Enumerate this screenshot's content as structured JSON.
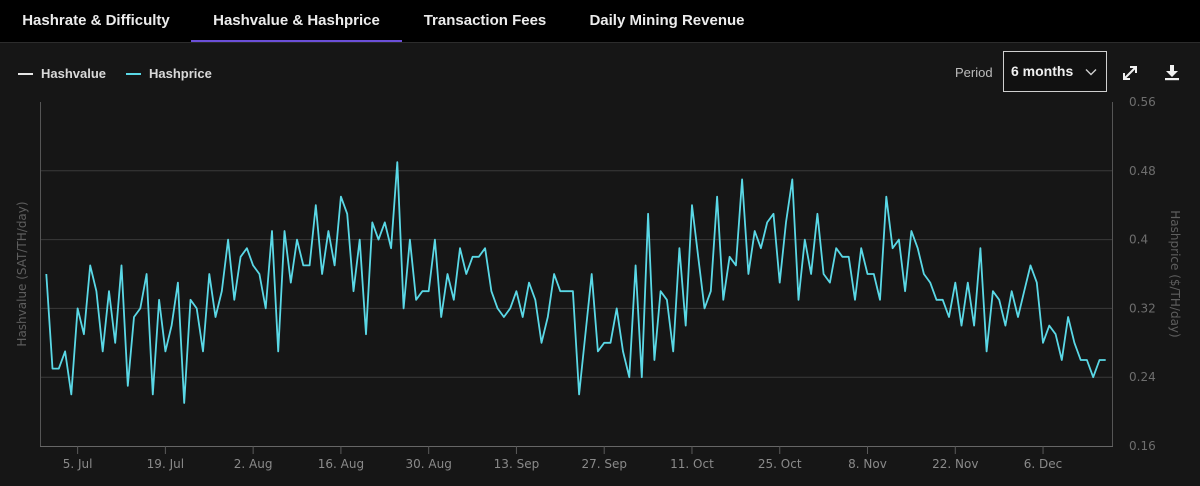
{
  "tabs": [
    {
      "label": "Hashrate & Difficulty",
      "active": false
    },
    {
      "label": "Hashvalue & Hashprice",
      "active": true
    },
    {
      "label": "Transaction Fees",
      "active": false
    },
    {
      "label": "Daily Mining Revenue",
      "active": false
    }
  ],
  "legend": [
    {
      "label": "Hashvalue",
      "color": "#e6e6e6"
    },
    {
      "label": "Hashprice",
      "color": "#5ad8e6"
    }
  ],
  "period": {
    "label": "Period",
    "value": "6 months"
  },
  "icons": {
    "expand": "expand-icon",
    "download": "download-icon",
    "chevron": "chevron-down-icon"
  },
  "chart_data": {
    "type": "line",
    "title": "",
    "ylabel_left": "Hashvalue (SAT/TH/day)",
    "ylabel_right": "Hashprice ($/TH/day)",
    "y_right_ticks": [
      "0.56",
      "0.48",
      "0.4",
      "0.32",
      "0.24",
      "0.16"
    ],
    "ylim": [
      0.16,
      0.56
    ],
    "x_tick_labels": [
      "5. Jul",
      "19. Jul",
      "2. Aug",
      "16. Aug",
      "30. Aug",
      "13. Sep",
      "27. Sep",
      "11. Oct",
      "25. Oct",
      "8. Nov",
      "22. Nov",
      "6. Dec"
    ],
    "x_tick_days": [
      5,
      19,
      33,
      47,
      61,
      75,
      89,
      103,
      117,
      131,
      145,
      159
    ],
    "x_range_days": [
      -1,
      170
    ],
    "series": [
      {
        "name": "Hashprice",
        "color": "#5ad8e6",
        "start_day": 0,
        "values": [
          0.36,
          0.25,
          0.25,
          0.27,
          0.22,
          0.32,
          0.29,
          0.37,
          0.34,
          0.27,
          0.34,
          0.28,
          0.37,
          0.23,
          0.31,
          0.32,
          0.36,
          0.22,
          0.33,
          0.27,
          0.3,
          0.35,
          0.21,
          0.33,
          0.32,
          0.27,
          0.36,
          0.31,
          0.34,
          0.4,
          0.33,
          0.38,
          0.39,
          0.37,
          0.36,
          0.32,
          0.41,
          0.27,
          0.41,
          0.35,
          0.4,
          0.37,
          0.37,
          0.44,
          0.36,
          0.41,
          0.37,
          0.45,
          0.43,
          0.34,
          0.4,
          0.29,
          0.42,
          0.4,
          0.42,
          0.39,
          0.49,
          0.32,
          0.4,
          0.33,
          0.34,
          0.34,
          0.4,
          0.31,
          0.36,
          0.33,
          0.39,
          0.36,
          0.38,
          0.38,
          0.39,
          0.34,
          0.32,
          0.31,
          0.32,
          0.34,
          0.31,
          0.35,
          0.33,
          0.28,
          0.31,
          0.36,
          0.34,
          0.34,
          0.34,
          0.22,
          0.29,
          0.36,
          0.27,
          0.28,
          0.28,
          0.32,
          0.27,
          0.24,
          0.37,
          0.24,
          0.43,
          0.26,
          0.34,
          0.33,
          0.27,
          0.39,
          0.3,
          0.44,
          0.38,
          0.32,
          0.34,
          0.45,
          0.33,
          0.38,
          0.37,
          0.47,
          0.36,
          0.41,
          0.39,
          0.42,
          0.43,
          0.35,
          0.42,
          0.47,
          0.33,
          0.4,
          0.36,
          0.43,
          0.36,
          0.35,
          0.39,
          0.38,
          0.38,
          0.33,
          0.39,
          0.36,
          0.36,
          0.33,
          0.45,
          0.39,
          0.4,
          0.34,
          0.41,
          0.39,
          0.36,
          0.35,
          0.33,
          0.33,
          0.31,
          0.35,
          0.3,
          0.35,
          0.3,
          0.39,
          0.27,
          0.34,
          0.33,
          0.3,
          0.34,
          0.31,
          0.34,
          0.37,
          0.35,
          0.28,
          0.3,
          0.29,
          0.26,
          0.31,
          0.28,
          0.26,
          0.26,
          0.24,
          0.26,
          0.26
        ]
      }
    ]
  }
}
